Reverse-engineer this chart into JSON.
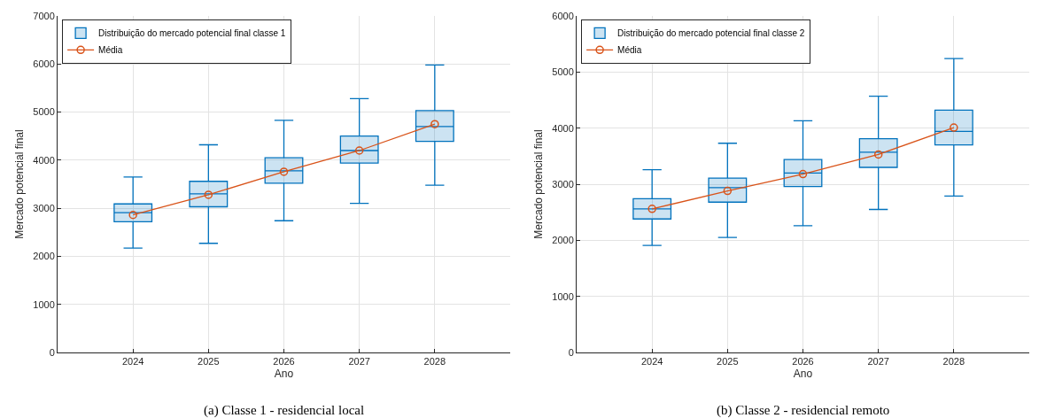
{
  "chart_data": [
    {
      "type": "box",
      "xlabel": "Ano",
      "ylabel": "Mercado potencial final",
      "categories": [
        "2024",
        "2025",
        "2026",
        "2027",
        "2028"
      ],
      "ylim": [
        0,
        7000
      ],
      "yticks": [
        0,
        1000,
        2000,
        3000,
        4000,
        5000,
        6000,
        7000
      ],
      "grid": true,
      "legend": "top left",
      "annotations": [
        "(a) Classe 1 - residencial local"
      ],
      "series": [
        {
          "type": "box",
          "name": "Distribuição do mercado potencial final classe 1",
          "color": "#0072bd",
          "boxes": [
            {
              "low": 2170,
              "q1": 2720,
              "median": 2910,
              "q3": 3090,
              "high": 3650
            },
            {
              "low": 2270,
              "q1": 3030,
              "median": 3300,
              "q3": 3560,
              "high": 4320
            },
            {
              "low": 2740,
              "q1": 3520,
              "median": 3780,
              "q3": 4050,
              "high": 4830
            },
            {
              "low": 3100,
              "q1": 3940,
              "median": 4200,
              "q3": 4500,
              "high": 5280
            },
            {
              "low": 3480,
              "q1": 4390,
              "median": 4700,
              "q3": 5030,
              "high": 5980
            }
          ]
        },
        {
          "type": "line",
          "name": "Média",
          "color": "#d95319",
          "marker": "circle",
          "values": [
            2860,
            3280,
            3760,
            4200,
            4750
          ]
        }
      ]
    },
    {
      "type": "box",
      "xlabel": "Ano",
      "ylabel": "Mercado potencial final",
      "categories": [
        "2024",
        "2025",
        "2026",
        "2027",
        "2028"
      ],
      "ylim": [
        0,
        6000
      ],
      "yticks": [
        0,
        1000,
        2000,
        3000,
        4000,
        5000,
        6000
      ],
      "grid": true,
      "legend": "top left",
      "annotations": [
        "(b) Classe 2 - residencial remoto"
      ],
      "series": [
        {
          "type": "box",
          "name": "Distribuição do mercado potencial final classe 2",
          "color": "#0072bd",
          "boxes": [
            {
              "low": 1910,
              "q1": 2380,
              "median": 2560,
              "q3": 2740,
              "high": 3260
            },
            {
              "low": 2050,
              "q1": 2680,
              "median": 2940,
              "q3": 3110,
              "high": 3730
            },
            {
              "low": 2260,
              "q1": 2960,
              "median": 3200,
              "q3": 3440,
              "high": 4130
            },
            {
              "low": 2550,
              "q1": 3300,
              "median": 3570,
              "q3": 3810,
              "high": 4570
            },
            {
              "low": 2790,
              "q1": 3700,
              "median": 3940,
              "q3": 4320,
              "high": 5240
            }
          ]
        },
        {
          "type": "line",
          "name": "Média",
          "color": "#d95319",
          "marker": "circle",
          "values": [
            2560,
            2880,
            3180,
            3530,
            4010
          ]
        }
      ]
    }
  ]
}
